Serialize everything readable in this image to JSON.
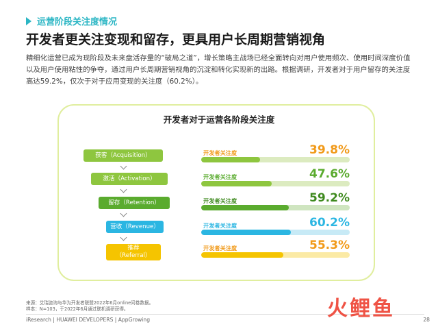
{
  "section_tag": "运营阶段关注度情况",
  "title": "开发者更关注变现和留存，更具用户长周期营销视角",
  "paragraph": "精细化运营已成为现阶段及未来盘活存量的“破局之道”，增长策略主战场已经全面转向对用户使用频次、使用时间深度价值以及用户使用粘性的争夺，通过用户长周期营销视角的沉淀和转化实现新的出路。根据调研，开发者对于用户留存的关注度高达59.2%，仅次于对于应用变现的关注度（60.2%）。",
  "chart_data": {
    "type": "bar",
    "title": "开发者对于运营各阶段关注度",
    "categories": [
      "获客（Acquisition）",
      "激活（Activation）",
      "留存（Retention）",
      "营收（Revenue）",
      "推荐（Referral）"
    ],
    "series": [
      {
        "name": "开发者关注度",
        "values": [
          39.8,
          47.6,
          59.2,
          60.2,
          55.3
        ]
      }
    ],
    "value_labels": [
      "39.8%",
      "47.6%",
      "59.2%",
      "60.2%",
      "55.3%"
    ],
    "ylim": [
      0,
      100
    ],
    "colors": [
      "#8ec63f",
      "#8ec63f",
      "#5aab2e",
      "#2bb6e2",
      "#f5c400"
    ],
    "track_colors": [
      "#dcebc0",
      "#dcebc0",
      "#cfe5c0",
      "#c7eaf6",
      "#fbeaa5"
    ],
    "label_colors": [
      "#f19a1a",
      "#5aab2e",
      "#3f8a1f",
      "#2bb6e2",
      "#f19a1a"
    ]
  },
  "stages": [
    {
      "line1": "获客（Acquisition）",
      "line2": "",
      "color": "#8ec63f"
    },
    {
      "line1": "激活（Activation）",
      "line2": "",
      "color": "#8ec63f"
    },
    {
      "line1": "留存（Retention）",
      "line2": "",
      "color": "#5aab2e"
    },
    {
      "line1": "营收（Revenue）",
      "line2": "",
      "color": "#2bb6e2"
    },
    {
      "line1": "推荐",
      "line2": "（Referral）",
      "color": "#f5c400"
    }
  ],
  "source_line1": "来源：艾瑞咨询与华为开发者联盟2022年6月online问卷数据。",
  "source_line2": "样本：N=103，于2022年6月通过联机调研获得。",
  "footer": "iResearch | HUAWEI DEVELOPERS | AppGrowing",
  "page_number": "28",
  "watermark": "火鲤鱼"
}
